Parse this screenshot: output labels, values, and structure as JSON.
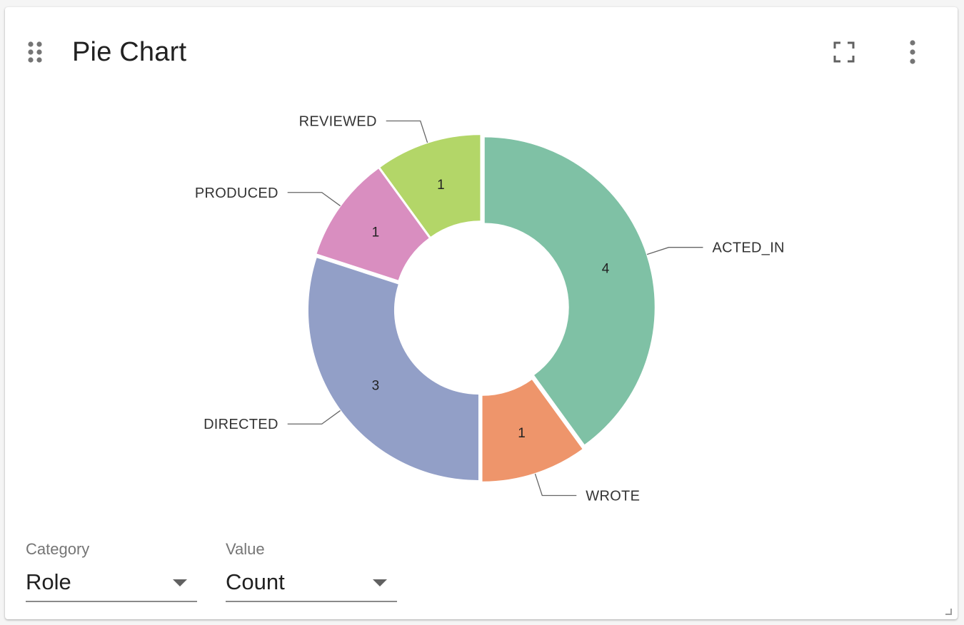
{
  "card": {
    "title": "Pie Chart",
    "icons": {
      "drag": "drag-indicator-icon",
      "fullscreen": "fullscreen-icon",
      "menu": "more-vert-icon",
      "resize": "resize-corner-icon"
    }
  },
  "chart_data": {
    "type": "pie",
    "donut": true,
    "categories": [
      "ACTED_IN",
      "WROTE",
      "DIRECTED",
      "PRODUCED",
      "REVIEWED"
    ],
    "values": [
      4,
      1,
      3,
      1,
      1
    ],
    "colors": [
      "#7fc1a5",
      "#ee956b",
      "#929fc7",
      "#d98ec0",
      "#b3d668"
    ],
    "title": "",
    "legend": "none",
    "labels": "outside"
  },
  "selectors": {
    "category": {
      "label": "Category",
      "value": "Role"
    },
    "value": {
      "label": "Value",
      "value": "Count"
    }
  }
}
